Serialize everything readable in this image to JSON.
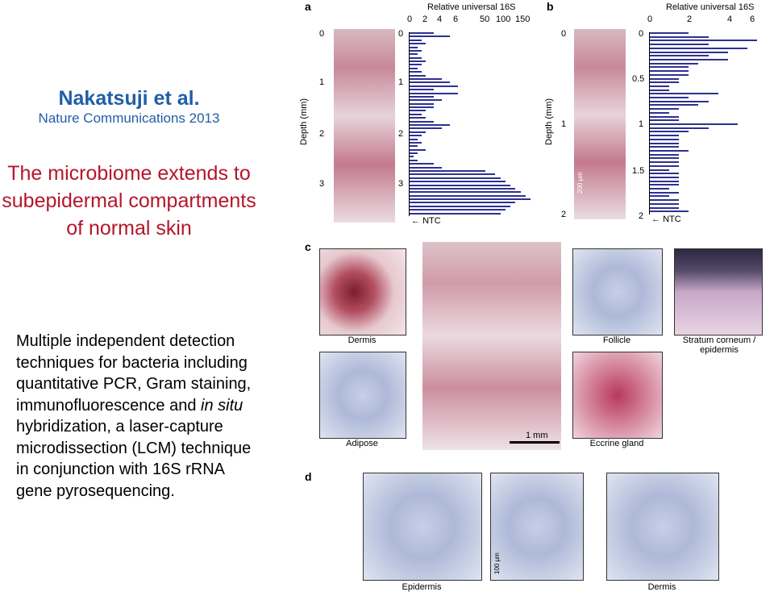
{
  "left": {
    "author": "Nakatsuji et al.",
    "journal": "Nature Communications 2013",
    "headline": "The microbiome extends to subepidermal compartments of normal skin",
    "body_part1": "Multiple independent detection techniques for bacteria including quantitative PCR, Gram staining, immunofluorescence and ",
    "body_italic": "in situ",
    "body_part2": " hybridization, a laser-capture microdissection (LCM) technique in conjunction with 16S rRNA gene pyrosequencing."
  },
  "figure": {
    "panel_a": {
      "letter": "a",
      "x_title": "Relative universal 16S",
      "x_ticks": [
        "0",
        "2",
        "4",
        "6",
        "50",
        "100",
        "150"
      ],
      "y_title": "Depth (mm)",
      "y_ticks": [
        "0",
        "1",
        "2",
        "3"
      ],
      "ntc_label": "NTC"
    },
    "panel_b": {
      "letter": "b",
      "x_title": "Relative universal 16S",
      "x_ticks": [
        "0",
        "2",
        "4",
        "6"
      ],
      "y_title": "Depth (mm)",
      "y_ticks_left": [
        "0",
        "1",
        "2"
      ],
      "y_ticks_right": [
        "0",
        "0.5",
        "1",
        "1.5",
        "2"
      ],
      "ntc_label": "NTC",
      "scale_label": "200 µm"
    },
    "panel_c": {
      "letter": "c",
      "labels": {
        "dermis": "Dermis",
        "follicle": "Follicle",
        "stratum": "Stratum corneum / epidermis",
        "adipose": "Adipose",
        "scale": "1 mm",
        "eccrine": "Eccrine gland"
      }
    },
    "panel_d": {
      "letter": "d",
      "labels": {
        "epidermis": "Epidermis",
        "dermis": "Dermis",
        "scale": "100 µm"
      }
    }
  },
  "chart_data": [
    {
      "type": "bar",
      "orientation": "horizontal",
      "panel": "a",
      "xlabel": "Relative universal 16S",
      "ylabel": "Depth (mm)",
      "xlim": [
        0,
        150
      ],
      "ylim": [
        0,
        3.5
      ],
      "values": [
        3,
        5,
        1.5,
        2,
        1,
        1.5,
        1,
        1.5,
        2,
        1.5,
        1,
        1.5,
        2,
        4,
        5,
        6,
        3,
        6,
        3,
        4,
        3,
        3,
        2,
        1.5,
        2,
        3,
        5,
        4,
        2,
        1.5,
        1,
        1.5,
        1,
        2,
        1,
        0.5,
        1,
        3,
        4,
        60,
        80,
        90,
        100,
        110,
        120,
        130,
        140,
        150,
        120,
        110,
        100,
        90
      ]
    },
    {
      "type": "bar",
      "orientation": "horizontal",
      "panel": "b",
      "xlabel": "Relative universal 16S",
      "ylabel": "Depth (mm)",
      "xlim": [
        0,
        6
      ],
      "ylim": [
        0,
        2
      ],
      "values": [
        2,
        3,
        5.5,
        3,
        5,
        4,
        3,
        4,
        2.5,
        2,
        2,
        2,
        1.5,
        1.5,
        1,
        1,
        3.5,
        2,
        3,
        2.5,
        1.5,
        1,
        1.5,
        1.5,
        4.5,
        3,
        2,
        1.5,
        1.5,
        1.5,
        1.5,
        2,
        1.5,
        1.5,
        1.5,
        1.5,
        1,
        1.5,
        1.5,
        1.5,
        1.5,
        1,
        1.5,
        1,
        1.5,
        1.5,
        1.5,
        2
      ]
    }
  ]
}
